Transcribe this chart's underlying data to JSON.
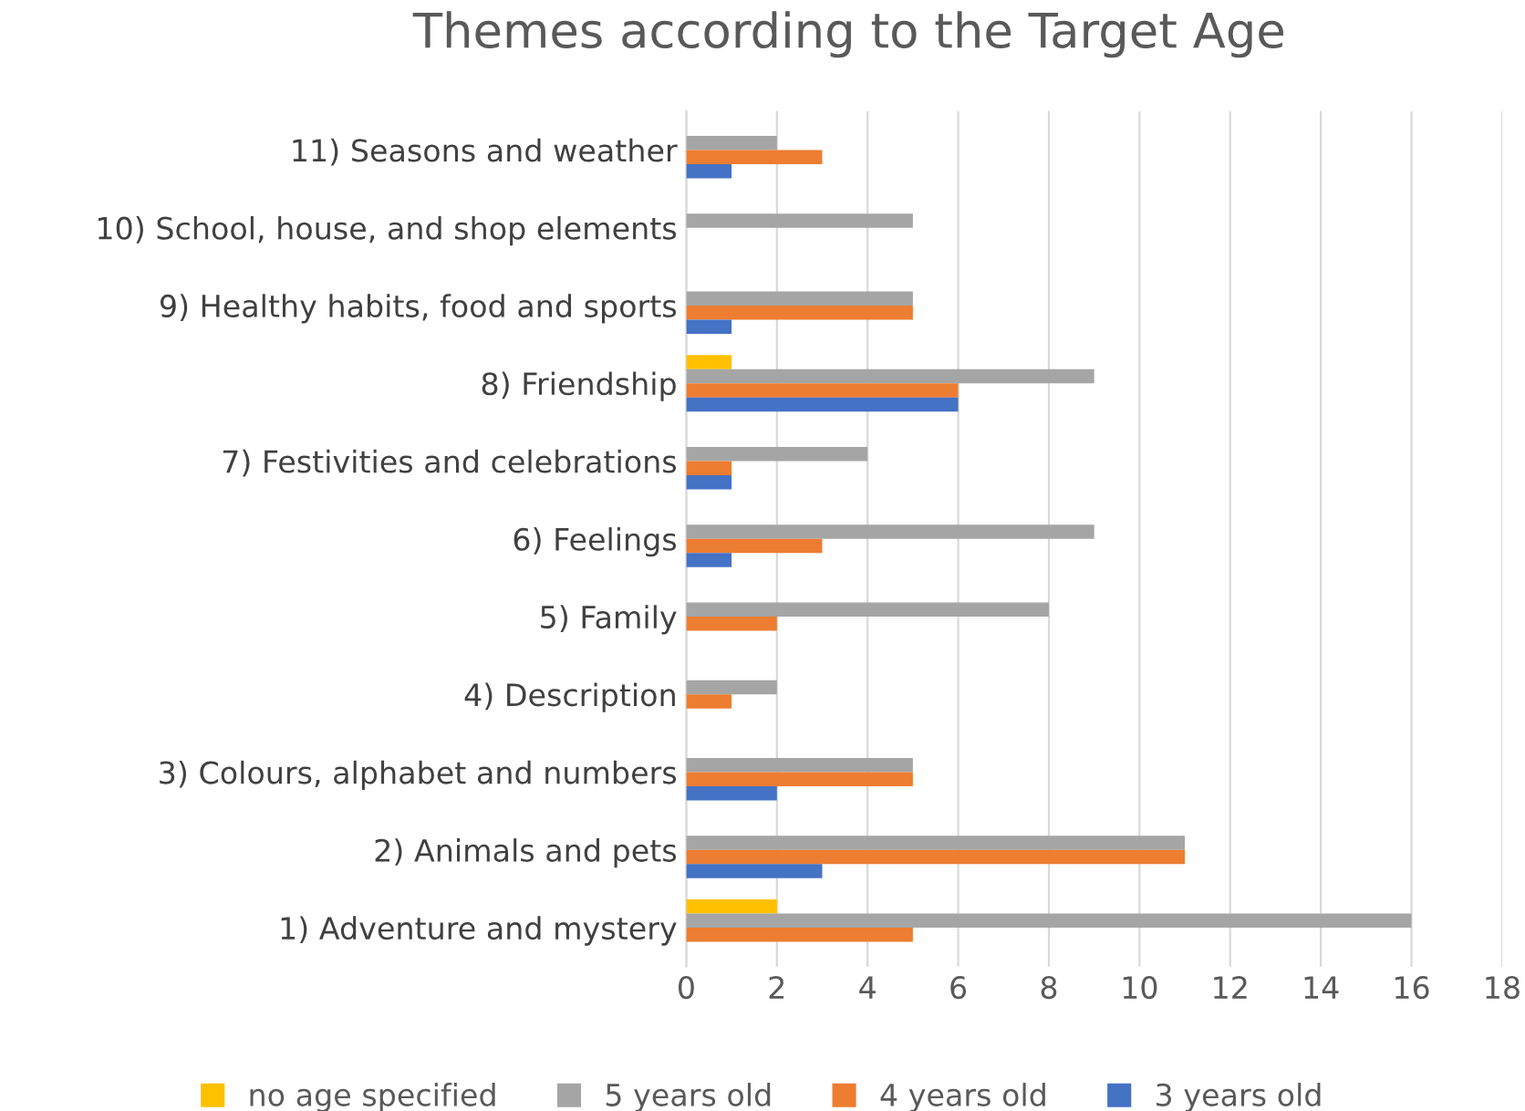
{
  "chart_data": {
    "type": "bar",
    "orientation": "horizontal",
    "title": "Themes according to the Target Age",
    "categories": [
      "11) Seasons and weather",
      "10) School, house, and shop elements",
      "9) Healthy habits, food and sports",
      "8) Friendship",
      "7) Festivities and celebrations",
      "6) Feelings",
      "5) Family",
      "4) Description",
      "3) Colours, alphabet and numbers",
      "2) Animals and pets",
      "1) Adventure and mystery"
    ],
    "series": [
      {
        "name": "no age specified",
        "color": "#ffc000",
        "values": [
          0,
          0,
          0,
          1,
          0,
          0,
          0,
          0,
          0,
          0,
          2
        ]
      },
      {
        "name": "5 years old",
        "color": "#a5a5a5",
        "values": [
          2,
          5,
          5,
          9,
          4,
          9,
          8,
          2,
          5,
          11,
          16
        ]
      },
      {
        "name": "4 years old",
        "color": "#ed7d31",
        "values": [
          3,
          0,
          5,
          6,
          1,
          3,
          2,
          1,
          5,
          11,
          5
        ]
      },
      {
        "name": "3 years old",
        "color": "#4472c4",
        "values": [
          1,
          0,
          1,
          6,
          1,
          1,
          0,
          0,
          2,
          3,
          0
        ]
      }
    ],
    "xlim": [
      0,
      18
    ],
    "xticks": [
      0,
      2,
      4,
      6,
      8,
      10,
      12,
      14,
      16,
      18
    ],
    "grid": "x",
    "legend": "bottom"
  }
}
